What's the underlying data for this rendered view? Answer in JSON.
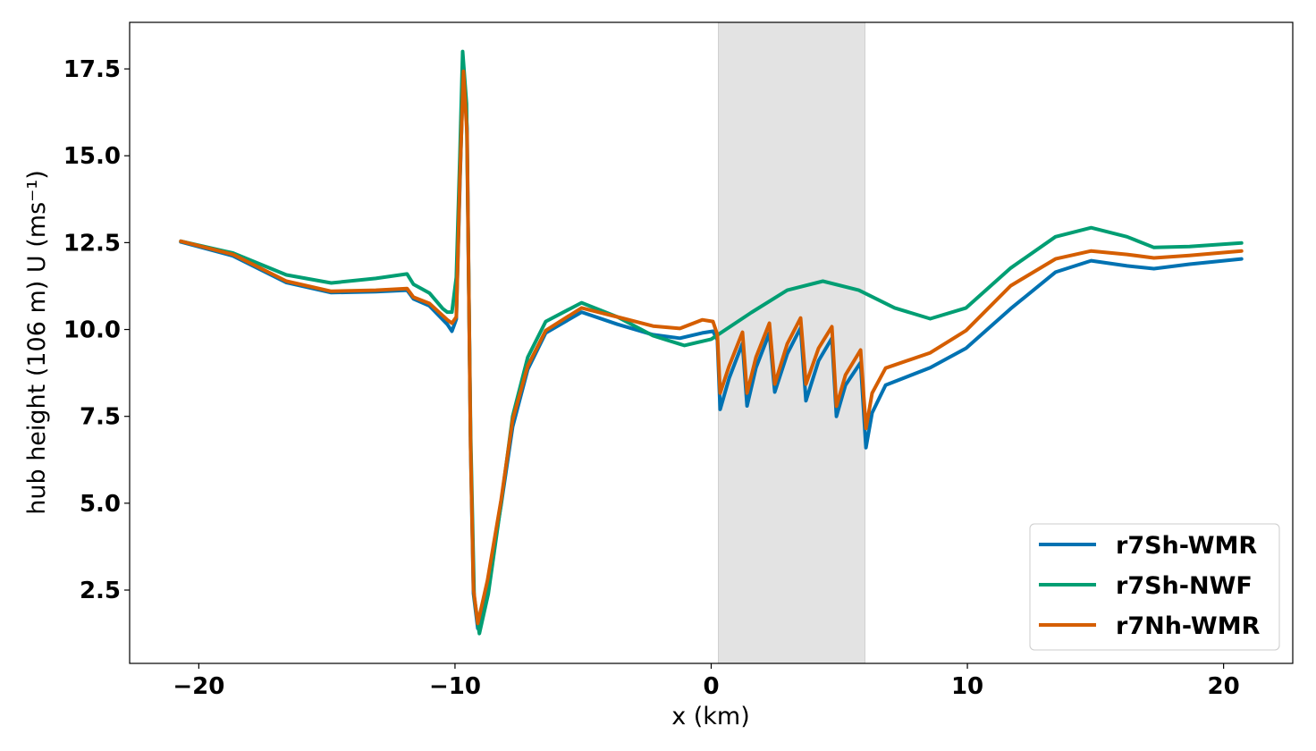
{
  "chart_data": {
    "type": "line",
    "title": "",
    "xlabel": "x (km)",
    "ylabel": "hub height (106 m) U (ms⁻¹)",
    "xlim": [
      -22.7,
      22.7
    ],
    "ylim": [
      0.39,
      18.84
    ],
    "xticks": [
      -20,
      -10,
      0,
      10,
      20
    ],
    "xtick_labels": [
      "−20",
      "−10",
      "0",
      "10",
      "20"
    ],
    "yticks": [
      2.5,
      5.0,
      7.5,
      10.0,
      12.5,
      15.0,
      17.5
    ],
    "ytick_labels": [
      "2.5",
      "5.0",
      "7.5",
      "10.0",
      "12.5",
      "15.0",
      "17.5"
    ],
    "grid": false,
    "legend_position": "lower-right",
    "shaded_region": {
      "x": [
        0.28,
        6.0
      ],
      "color": "#e3e3e3"
    },
    "series": [
      {
        "name": "r7Sh-WMR",
        "color": "#0072B2",
        "points": [
          [
            -20.7,
            12.52
          ],
          [
            -18.67,
            12.12
          ],
          [
            -16.58,
            11.35
          ],
          [
            -14.83,
            11.06
          ],
          [
            -13.09,
            11.09
          ],
          [
            -11.87,
            11.13
          ],
          [
            -11.62,
            10.88
          ],
          [
            -11.0,
            10.68
          ],
          [
            -10.3,
            10.15
          ],
          [
            -10.12,
            9.95
          ],
          [
            -9.95,
            10.3
          ],
          [
            -9.81,
            14.2
          ],
          [
            -9.67,
            17.6
          ],
          [
            -9.53,
            15.8
          ],
          [
            -9.39,
            6.6
          ],
          [
            -9.28,
            2.4
          ],
          [
            -9.11,
            1.4
          ],
          [
            -8.73,
            2.6
          ],
          [
            -8.2,
            4.95
          ],
          [
            -7.75,
            7.2
          ],
          [
            -7.16,
            8.85
          ],
          [
            -6.46,
            9.9
          ],
          [
            -5.06,
            10.5
          ],
          [
            -3.66,
            10.15
          ],
          [
            -2.27,
            9.85
          ],
          [
            -1.22,
            9.75
          ],
          [
            -0.35,
            9.9
          ],
          [
            0.07,
            9.95
          ],
          [
            0.24,
            9.7
          ],
          [
            0.35,
            7.7
          ],
          [
            0.7,
            8.6
          ],
          [
            1.22,
            9.6
          ],
          [
            1.4,
            7.8
          ],
          [
            1.75,
            8.9
          ],
          [
            2.27,
            9.9
          ],
          [
            2.48,
            8.2
          ],
          [
            2.97,
            9.3
          ],
          [
            3.49,
            10.05
          ],
          [
            3.7,
            7.95
          ],
          [
            4.19,
            9.1
          ],
          [
            4.71,
            9.75
          ],
          [
            4.89,
            7.5
          ],
          [
            5.24,
            8.4
          ],
          [
            5.83,
            9.05
          ],
          [
            6.04,
            6.6
          ],
          [
            6.28,
            7.6
          ],
          [
            6.81,
            8.4
          ],
          [
            8.55,
            8.9
          ],
          [
            9.95,
            9.46
          ],
          [
            11.69,
            10.6
          ],
          [
            13.44,
            11.65
          ],
          [
            14.83,
            11.98
          ],
          [
            16.23,
            11.83
          ],
          [
            17.28,
            11.75
          ],
          [
            18.67,
            11.88
          ],
          [
            20.7,
            12.03
          ]
        ]
      },
      {
        "name": "r7Sh-NWF",
        "color": "#009E73",
        "points": [
          [
            -20.7,
            12.54
          ],
          [
            -18.67,
            12.2
          ],
          [
            -16.58,
            11.57
          ],
          [
            -14.83,
            11.34
          ],
          [
            -13.09,
            11.47
          ],
          [
            -11.87,
            11.6
          ],
          [
            -11.62,
            11.3
          ],
          [
            -11.0,
            11.05
          ],
          [
            -10.48,
            10.6
          ],
          [
            -10.3,
            10.5
          ],
          [
            -10.12,
            10.5
          ],
          [
            -9.95,
            11.5
          ],
          [
            -9.81,
            15.0
          ],
          [
            -9.7,
            18.0
          ],
          [
            -9.55,
            16.5
          ],
          [
            -9.39,
            7.0
          ],
          [
            -9.25,
            2.3
          ],
          [
            -9.05,
            1.25
          ],
          [
            -8.7,
            2.4
          ],
          [
            -8.2,
            5.0
          ],
          [
            -7.75,
            7.5
          ],
          [
            -7.16,
            9.2
          ],
          [
            -6.46,
            10.23
          ],
          [
            -5.06,
            10.77
          ],
          [
            -3.66,
            10.36
          ],
          [
            -2.27,
            9.82
          ],
          [
            -1.05,
            9.54
          ],
          [
            0.0,
            9.72
          ],
          [
            1.57,
            10.49
          ],
          [
            2.97,
            11.13
          ],
          [
            4.36,
            11.39
          ],
          [
            5.76,
            11.13
          ],
          [
            7.16,
            10.62
          ],
          [
            8.55,
            10.31
          ],
          [
            9.95,
            10.62
          ],
          [
            11.69,
            11.77
          ],
          [
            13.44,
            12.67
          ],
          [
            14.83,
            12.93
          ],
          [
            16.23,
            12.67
          ],
          [
            17.28,
            12.36
          ],
          [
            18.67,
            12.39
          ],
          [
            20.7,
            12.49
          ]
        ]
      },
      {
        "name": "r7Nh-WMR",
        "color": "#D55E00",
        "points": [
          [
            -20.7,
            12.54
          ],
          [
            -18.67,
            12.16
          ],
          [
            -16.58,
            11.39
          ],
          [
            -14.83,
            11.1
          ],
          [
            -13.09,
            11.13
          ],
          [
            -11.87,
            11.18
          ],
          [
            -11.62,
            10.93
          ],
          [
            -11.0,
            10.75
          ],
          [
            -10.3,
            10.28
          ],
          [
            -10.12,
            10.18
          ],
          [
            -9.95,
            10.36
          ],
          [
            -9.81,
            14.34
          ],
          [
            -9.67,
            17.43
          ],
          [
            -9.53,
            15.63
          ],
          [
            -9.39,
            6.63
          ],
          [
            -9.28,
            2.52
          ],
          [
            -9.11,
            1.54
          ],
          [
            -8.73,
            2.78
          ],
          [
            -8.2,
            5.09
          ],
          [
            -7.75,
            7.4
          ],
          [
            -7.16,
            8.95
          ],
          [
            -6.46,
            9.97
          ],
          [
            -5.06,
            10.62
          ],
          [
            -3.66,
            10.36
          ],
          [
            -2.27,
            10.1
          ],
          [
            -1.22,
            10.03
          ],
          [
            -0.35,
            10.28
          ],
          [
            0.07,
            10.23
          ],
          [
            0.24,
            9.85
          ],
          [
            0.35,
            8.17
          ],
          [
            0.7,
            8.95
          ],
          [
            1.22,
            9.92
          ],
          [
            1.4,
            8.17
          ],
          [
            1.75,
            9.2
          ],
          [
            2.27,
            10.18
          ],
          [
            2.48,
            8.43
          ],
          [
            2.97,
            9.59
          ],
          [
            3.49,
            10.33
          ],
          [
            3.7,
            8.43
          ],
          [
            4.19,
            9.46
          ],
          [
            4.71,
            10.08
          ],
          [
            4.89,
            7.79
          ],
          [
            5.24,
            8.69
          ],
          [
            5.83,
            9.41
          ],
          [
            6.04,
            7.15
          ],
          [
            6.28,
            8.17
          ],
          [
            6.81,
            8.89
          ],
          [
            8.55,
            9.33
          ],
          [
            9.95,
            9.97
          ],
          [
            11.69,
            11.26
          ],
          [
            13.44,
            12.03
          ],
          [
            14.83,
            12.26
          ],
          [
            16.23,
            12.16
          ],
          [
            17.28,
            12.06
          ],
          [
            18.67,
            12.13
          ],
          [
            20.7,
            12.26
          ]
        ]
      }
    ]
  }
}
